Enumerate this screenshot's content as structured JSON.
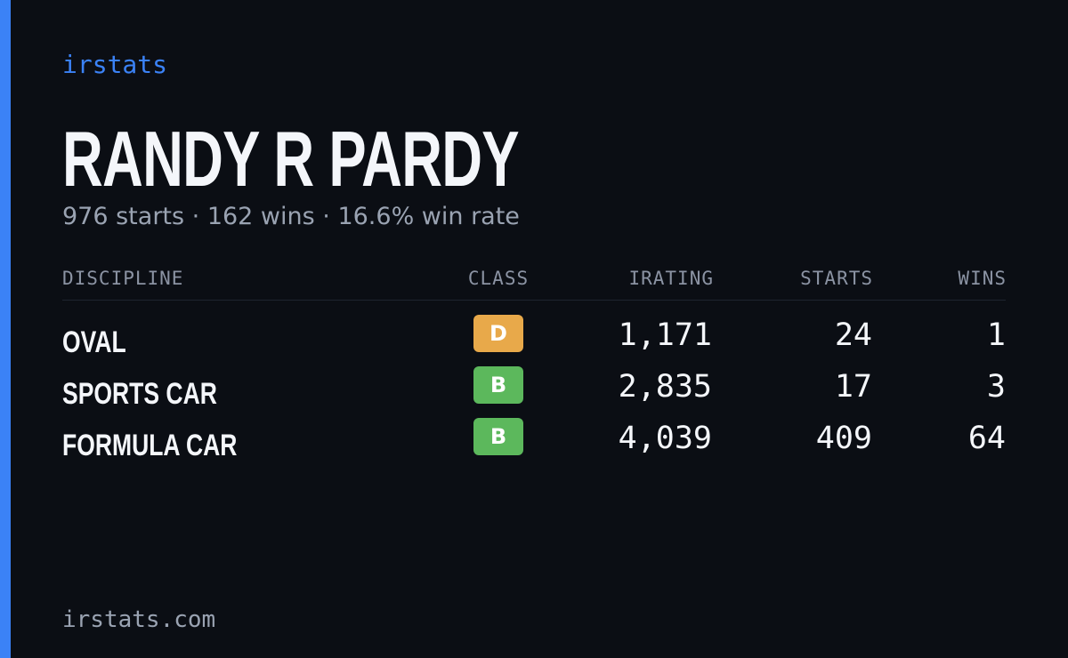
{
  "brand": "irstats",
  "driver": {
    "name": "RANDY R PARDY",
    "summary": "976 starts · 162 wins · 16.6% win rate"
  },
  "table": {
    "headers": [
      "DISCIPLINE",
      "CLASS",
      "IRATING",
      "STARTS",
      "WINS"
    ],
    "rows": [
      {
        "discipline": "OVAL",
        "class": "D",
        "class_color": "#e8a94a",
        "irating": "1,171",
        "starts": "24",
        "wins": "1"
      },
      {
        "discipline": "SPORTS CAR",
        "class": "B",
        "class_color": "#5cb85c",
        "irating": "2,835",
        "starts": "17",
        "wins": "3"
      },
      {
        "discipline": "FORMULA CAR",
        "class": "B",
        "class_color": "#5cb85c",
        "irating": "4,039",
        "starts": "409",
        "wins": "64"
      }
    ]
  },
  "footer": "irstats.com"
}
